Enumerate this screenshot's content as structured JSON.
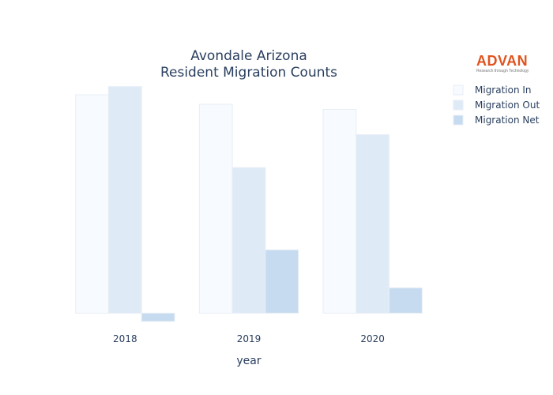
{
  "chart_data": {
    "type": "bar",
    "title_line1": "Avondale Arizona",
    "title_line2": "Resident Migration Counts",
    "xlabel": "year",
    "ylabel": "",
    "categories": [
      "2018",
      "2019",
      "2020"
    ],
    "series": [
      {
        "name": "Migration In",
        "values": [
          3450,
          3300,
          3220
        ],
        "color": "#f7fbff"
      },
      {
        "name": "Migration Out",
        "values": [
          3580,
          2300,
          2820
        ],
        "color": "#deebf7"
      },
      {
        "name": "Migration Net",
        "values": [
          -130,
          1000,
          400
        ],
        "color": "#c6dbef"
      }
    ],
    "ylim": [
      -170,
      3700
    ],
    "grid": false,
    "legend_position": "top-right"
  },
  "logo": {
    "name": "ADVAN",
    "tagline": "Research through Technology"
  }
}
